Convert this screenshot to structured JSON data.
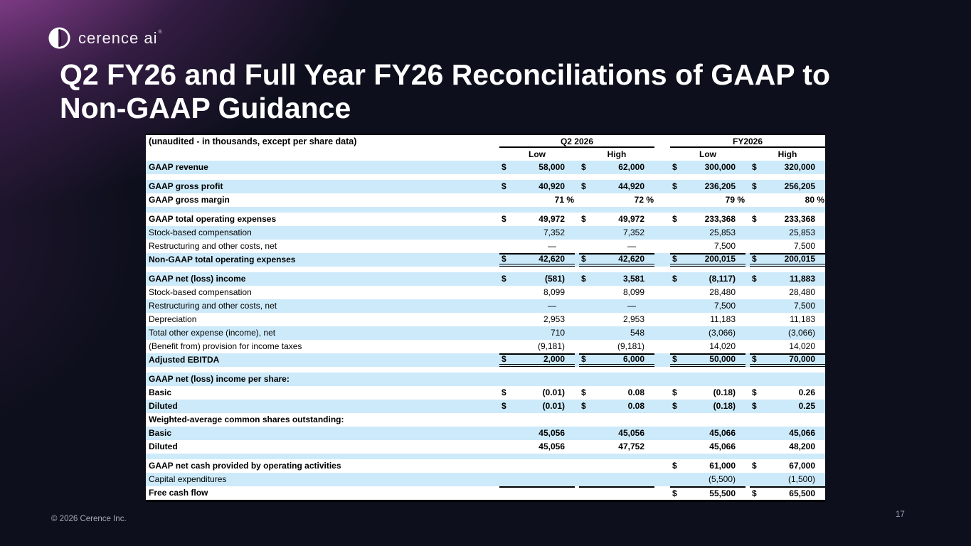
{
  "logo": {
    "brand": "cerence ai",
    "reg": "®"
  },
  "title": {
    "line1": "Q2 FY26 and Full Year FY26 Reconciliations of GAAP to",
    "line2": "Non-GAAP Guidance"
  },
  "footer": {
    "copyright": "© 2026 Cerence Inc.",
    "page_number": "17"
  },
  "colors": {
    "background": "#0d0f1c",
    "accent_purple": "#a452a8",
    "stripe_blue": "#cdeafa",
    "table_border": "#000000"
  },
  "table": {
    "currency_symbol": "$",
    "header": {
      "caption": "(unaudited - in thousands, except per share data)",
      "groups": [
        {
          "label": "Q2 2026"
        },
        {
          "label": "FY2026"
        }
      ],
      "subcols": [
        "Low",
        "High",
        "Low",
        "High"
      ]
    },
    "rows": [
      {
        "type": "data",
        "shade": "blue",
        "bold": true,
        "label": "GAAP revenue",
        "dollars": [
          true,
          true,
          true,
          true
        ],
        "values": [
          "58,000",
          "62,000",
          "300,000",
          "320,000"
        ]
      },
      {
        "type": "spacer",
        "shade": "white"
      },
      {
        "type": "data",
        "shade": "blue",
        "bold": true,
        "label": "GAAP gross profit",
        "dollars": [
          true,
          true,
          true,
          true
        ],
        "values": [
          "40,920",
          "44,920",
          "236,205",
          "256,205"
        ]
      },
      {
        "type": "data",
        "shade": "white",
        "bold": true,
        "label": "GAAP gross margin",
        "dollars": [
          false,
          false,
          false,
          false
        ],
        "values": [
          "71 %",
          "72 %",
          "79 %",
          "80 %"
        ],
        "percent": true
      },
      {
        "type": "spacer",
        "shade": "blue"
      },
      {
        "type": "data",
        "shade": "white",
        "bold": true,
        "label": "GAAP total operating expenses",
        "dollars": [
          true,
          true,
          true,
          true
        ],
        "values": [
          "49,972",
          "49,972",
          "233,368",
          "233,368"
        ]
      },
      {
        "type": "data",
        "shade": "blue",
        "bold": false,
        "label": "Stock-based compensation",
        "dollars": [
          false,
          false,
          false,
          false
        ],
        "values": [
          "7,352",
          "7,352",
          "25,853",
          "25,853"
        ]
      },
      {
        "type": "data",
        "shade": "white",
        "bold": false,
        "label": "Restructuring and other costs, net",
        "dollars": [
          false,
          false,
          false,
          false
        ],
        "values": [
          "—",
          "—",
          "7,500",
          "7,500"
        ]
      },
      {
        "type": "data",
        "shade": "blue",
        "bold": true,
        "label": "Non-GAAP total operating expenses",
        "dollars": [
          true,
          true,
          true,
          true
        ],
        "values": [
          "42,620",
          "42,620",
          "200,015",
          "200,015"
        ],
        "rule_top": true,
        "rule_double": true
      },
      {
        "type": "spacer",
        "shade": "white"
      },
      {
        "type": "data",
        "shade": "blue",
        "bold": true,
        "label": "GAAP net (loss) income",
        "dollars": [
          true,
          true,
          true,
          true
        ],
        "values": [
          "(581)",
          "3,581",
          "(8,117)",
          "11,883"
        ]
      },
      {
        "type": "data",
        "shade": "white",
        "bold": false,
        "label": "Stock-based compensation",
        "dollars": [
          false,
          false,
          false,
          false
        ],
        "values": [
          "8,099",
          "8,099",
          "28,480",
          "28,480"
        ]
      },
      {
        "type": "data",
        "shade": "blue",
        "bold": false,
        "label": "Restructuring and other costs, net",
        "dollars": [
          false,
          false,
          false,
          false
        ],
        "values": [
          "—",
          "—",
          "7,500",
          "7,500"
        ]
      },
      {
        "type": "data",
        "shade": "white",
        "bold": false,
        "label": "Depreciation",
        "dollars": [
          false,
          false,
          false,
          false
        ],
        "values": [
          "2,953",
          "2,953",
          "11,183",
          "11,183"
        ]
      },
      {
        "type": "data",
        "shade": "blue",
        "bold": false,
        "label": "Total other expense (income), net",
        "dollars": [
          false,
          false,
          false,
          false
        ],
        "values": [
          "710",
          "548",
          "(3,066)",
          "(3,066)"
        ]
      },
      {
        "type": "data",
        "shade": "white",
        "bold": false,
        "label": "(Benefit from) provision for income taxes",
        "dollars": [
          false,
          false,
          false,
          false
        ],
        "values": [
          "(9,181)",
          "(9,181)",
          "14,020",
          "14,020"
        ]
      },
      {
        "type": "data",
        "shade": "blue",
        "bold": true,
        "label": "Adjusted EBITDA",
        "dollars": [
          true,
          true,
          true,
          true
        ],
        "values": [
          "2,000",
          "6,000",
          "50,000",
          "70,000"
        ],
        "rule_top": true,
        "rule_double": true
      },
      {
        "type": "spacer",
        "shade": "white"
      },
      {
        "type": "data",
        "shade": "blue",
        "bold": true,
        "label": "GAAP net (loss) income per share:",
        "dollars": [
          false,
          false,
          false,
          false
        ],
        "values": [
          "",
          "",
          "",
          ""
        ]
      },
      {
        "type": "data",
        "shade": "white",
        "bold": true,
        "label": "Basic",
        "dollars": [
          true,
          true,
          true,
          true
        ],
        "values": [
          "(0.01)",
          "0.08",
          "(0.18)",
          "0.26"
        ]
      },
      {
        "type": "data",
        "shade": "blue",
        "bold": true,
        "label": "Diluted",
        "dollars": [
          true,
          true,
          true,
          true
        ],
        "values": [
          "(0.01)",
          "0.08",
          "(0.18)",
          "0.25"
        ]
      },
      {
        "type": "data",
        "shade": "white",
        "bold": true,
        "label": "Weighted-average common shares outstanding:",
        "dollars": [
          false,
          false,
          false,
          false
        ],
        "values": [
          "",
          "",
          "",
          ""
        ]
      },
      {
        "type": "data",
        "shade": "blue",
        "bold": true,
        "label": "Basic",
        "dollars": [
          false,
          false,
          false,
          false
        ],
        "values": [
          "45,056",
          "45,056",
          "45,066",
          "45,066"
        ]
      },
      {
        "type": "data",
        "shade": "white",
        "bold": true,
        "label": "Diluted",
        "dollars": [
          false,
          false,
          false,
          false
        ],
        "values": [
          "45,056",
          "47,752",
          "45,066",
          "48,200"
        ]
      },
      {
        "type": "spacer",
        "shade": "blue"
      },
      {
        "type": "data",
        "shade": "white",
        "bold": true,
        "label": "GAAP net cash provided by operating activities",
        "dollars": [
          false,
          false,
          true,
          true
        ],
        "values": [
          "",
          "",
          "61,000",
          "67,000"
        ]
      },
      {
        "type": "data",
        "shade": "blue",
        "bold": false,
        "label": "Capital expenditures",
        "dollars": [
          false,
          false,
          false,
          false
        ],
        "values": [
          "",
          "",
          "(5,500)",
          "(1,500)"
        ]
      },
      {
        "type": "data",
        "shade": "white",
        "bold": true,
        "label": "Free cash flow",
        "dollars": [
          false,
          false,
          true,
          true
        ],
        "values": [
          "",
          "",
          "55,500",
          "65,500"
        ],
        "rule_top": true
      }
    ]
  }
}
